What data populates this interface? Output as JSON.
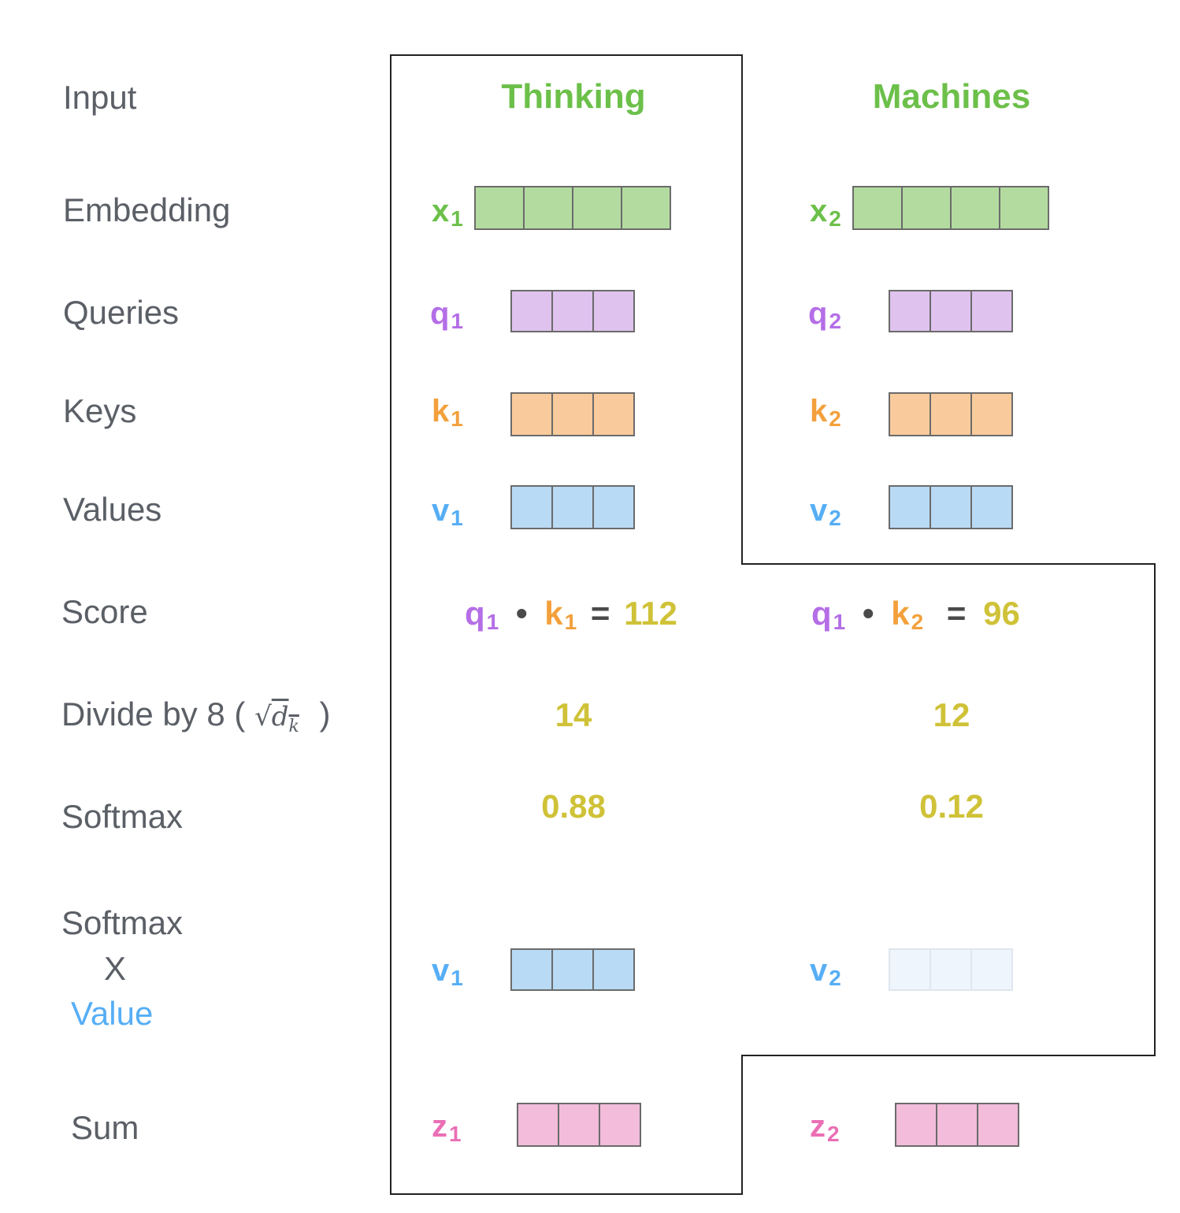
{
  "rows": {
    "input": "Input",
    "embedding": "Embedding",
    "queries": "Queries",
    "keys": "Keys",
    "values": "Values",
    "score": "Score",
    "divide": "Divide by 8 (",
    "divide_sqrt": "√",
    "divide_d": "d",
    "divide_k": "k",
    "divide_close": ")",
    "softmax": "Softmax",
    "sv_softmax": "Softmax",
    "sv_times": "X",
    "sv_value": "Value",
    "sum": "Sum"
  },
  "words": [
    "Thinking",
    "Machines"
  ],
  "labels": {
    "x1": "x",
    "x1s": "1",
    "x2": "x",
    "x2s": "2",
    "q1": "q",
    "q1s": "1",
    "q2": "q",
    "q2s": "2",
    "k1": "k",
    "k1s": "1",
    "k2": "k",
    "k2s": "2",
    "v1": "v",
    "v1s": "1",
    "v2": "v",
    "v2s": "2",
    "sv1": "v",
    "sv1s": "1",
    "sv2": "v",
    "sv2s": "2",
    "z1": "z",
    "z1s": "1",
    "z2": "z",
    "z2s": "2"
  },
  "score1": {
    "q": "q",
    "qs": "1",
    "dot": "•",
    "k": "k",
    "ks": "1",
    "eq": "=",
    "val": "112"
  },
  "score2": {
    "q": "q",
    "qs": "1",
    "dot": "•",
    "k": "k",
    "ks": "2",
    "eq": "=",
    "val": "96"
  },
  "divided": [
    "14",
    "12"
  ],
  "softmax": [
    "0.88",
    "0.12"
  ],
  "colors": {
    "embedding": "#b3dba0",
    "query": "#dfc2ee",
    "key": "#f9cb9c",
    "value": "#b9daf5",
    "value_faded": "#eef5fd",
    "sum": "#f2bcda"
  }
}
